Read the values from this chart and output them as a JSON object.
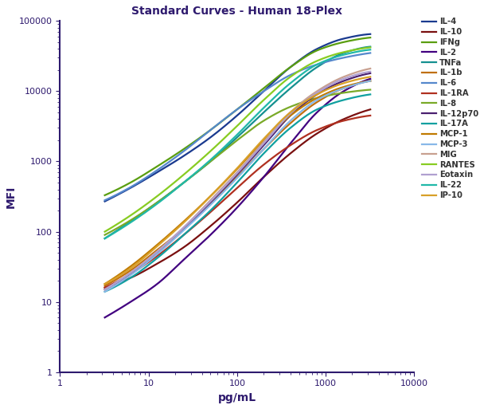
{
  "title": "Standard Curves - Human 18-Plex",
  "xlabel": "pg/mL",
  "ylabel": "MFI",
  "title_color": "#2e1a6e",
  "axis_color": "#2e1a6e",
  "tick_color": "#2e1a6e",
  "xlim": [
    1,
    10000
  ],
  "ylim": [
    1,
    100000
  ],
  "series": [
    {
      "label": "IL-4",
      "color": "#1a3a8f",
      "x": [
        3.2,
        6.25,
        12.5,
        25,
        50,
        100,
        200,
        400,
        800,
        1600,
        3200
      ],
      "y": [
        270,
        420,
        700,
        1200,
        2200,
        4500,
        10000,
        22000,
        40000,
        56000,
        65000
      ]
    },
    {
      "label": "IL-10",
      "color": "#7a1010",
      "x": [
        3.2,
        6.25,
        12.5,
        25,
        50,
        100,
        200,
        400,
        800,
        1600,
        3200
      ],
      "y": [
        16,
        22,
        35,
        60,
        120,
        260,
        600,
        1300,
        2500,
        4000,
        5500
      ]
    },
    {
      "label": "IFNg",
      "color": "#5a9e10",
      "x": [
        3.2,
        6.25,
        12.5,
        25,
        50,
        100,
        200,
        400,
        800,
        1600,
        3200
      ],
      "y": [
        330,
        500,
        850,
        1500,
        2800,
        5500,
        11000,
        22000,
        38000,
        50000,
        58000
      ]
    },
    {
      "label": "IL-2",
      "color": "#420080",
      "x": [
        3.2,
        6.25,
        12.5,
        25,
        50,
        100,
        200,
        400,
        800,
        1600,
        3200
      ],
      "y": [
        6,
        10,
        18,
        40,
        90,
        220,
        600,
        1800,
        5000,
        10000,
        15000
      ]
    },
    {
      "label": "TNFa",
      "color": "#159090",
      "x": [
        3.2,
        6.25,
        12.5,
        25,
        50,
        100,
        200,
        400,
        800,
        1600,
        3200
      ],
      "y": [
        80,
        140,
        260,
        500,
        1000,
        2200,
        5000,
        11000,
        22000,
        35000,
        43000
      ]
    },
    {
      "label": "IL-1b",
      "color": "#c07010",
      "x": [
        3.2,
        6.25,
        12.5,
        25,
        50,
        100,
        200,
        400,
        800,
        1600,
        3200
      ],
      "y": [
        17,
        28,
        55,
        110,
        250,
        600,
        1500,
        3500,
        7000,
        11000,
        14000
      ]
    },
    {
      "label": "IL-6",
      "color": "#5588cc",
      "x": [
        3.2,
        6.25,
        12.5,
        25,
        50,
        100,
        200,
        400,
        800,
        1600,
        3200
      ],
      "y": [
        280,
        430,
        750,
        1400,
        2800,
        5500,
        10000,
        17000,
        24000,
        30000,
        35000
      ]
    },
    {
      "label": "IL-1RA",
      "color": "#b03020",
      "x": [
        3.2,
        6.25,
        12.5,
        25,
        50,
        100,
        200,
        400,
        800,
        1600,
        3200
      ],
      "y": [
        16,
        25,
        45,
        90,
        190,
        420,
        900,
        1700,
        2800,
        3800,
        4500
      ]
    },
    {
      "label": "IL-8",
      "color": "#7aaa28",
      "x": [
        3.2,
        6.25,
        12.5,
        25,
        50,
        100,
        200,
        400,
        800,
        1600,
        3200
      ],
      "y": [
        90,
        145,
        260,
        500,
        1000,
        2000,
        3800,
        6000,
        8000,
        9500,
        10500
      ]
    },
    {
      "label": "IL-12p70",
      "color": "#4a2070",
      "x": [
        3.2,
        6.25,
        12.5,
        25,
        50,
        100,
        200,
        400,
        800,
        1600,
        3200
      ],
      "y": [
        15,
        25,
        50,
        110,
        260,
        650,
        1700,
        4500,
        9000,
        14000,
        18000
      ]
    },
    {
      "label": "IL-17A",
      "color": "#10a0a0",
      "x": [
        3.2,
        6.25,
        12.5,
        25,
        50,
        100,
        200,
        400,
        800,
        1600,
        3200
      ],
      "y": [
        14,
        22,
        42,
        90,
        200,
        500,
        1300,
        3000,
        5500,
        7500,
        9000
      ]
    },
    {
      "label": "MCP-1",
      "color": "#c07a00",
      "x": [
        3.2,
        6.25,
        12.5,
        25,
        50,
        100,
        200,
        400,
        800,
        1600,
        3200
      ],
      "y": [
        18,
        32,
        65,
        140,
        320,
        780,
        2000,
        4500,
        8000,
        11500,
        14000
      ]
    },
    {
      "label": "MCP-3",
      "color": "#88b8e8",
      "x": [
        3.2,
        6.25,
        12.5,
        25,
        50,
        100,
        200,
        400,
        800,
        1600,
        3200
      ],
      "y": [
        14,
        24,
        48,
        105,
        240,
        580,
        1500,
        3800,
        7500,
        11000,
        14000
      ]
    },
    {
      "label": "MIG",
      "color": "#c8a090",
      "x": [
        3.2,
        6.25,
        12.5,
        25,
        50,
        100,
        200,
        400,
        800,
        1600,
        3200
      ],
      "y": [
        15,
        26,
        52,
        115,
        280,
        700,
        1900,
        5000,
        10000,
        16000,
        21000
      ]
    },
    {
      "label": "RANTES",
      "color": "#88cc22",
      "x": [
        3.2,
        6.25,
        12.5,
        25,
        50,
        100,
        200,
        400,
        800,
        1600,
        3200
      ],
      "y": [
        100,
        170,
        320,
        650,
        1400,
        3200,
        7500,
        16000,
        27000,
        36000,
        42000
      ]
    },
    {
      "label": "Eotaxin",
      "color": "#b0a0d0",
      "x": [
        3.2,
        6.25,
        12.5,
        25,
        50,
        100,
        200,
        400,
        800,
        1600,
        3200
      ],
      "y": [
        15,
        26,
        52,
        115,
        270,
        680,
        1800,
        4800,
        9500,
        15000,
        19000
      ]
    },
    {
      "label": "IL-22",
      "color": "#20b8a8",
      "x": [
        3.2,
        6.25,
        12.5,
        25,
        50,
        100,
        200,
        400,
        800,
        1600,
        3200
      ],
      "y": [
        80,
        135,
        250,
        500,
        1050,
        2400,
        5800,
        13000,
        24000,
        33000,
        39000
      ]
    },
    {
      "label": "IP-10",
      "color": "#d8a028",
      "x": [
        3.2,
        6.25,
        12.5,
        25,
        50,
        100,
        200,
        400,
        800,
        1600,
        3200
      ],
      "y": [
        18,
        30,
        62,
        135,
        320,
        800,
        2100,
        5000,
        9000,
        13000,
        16000
      ]
    }
  ]
}
